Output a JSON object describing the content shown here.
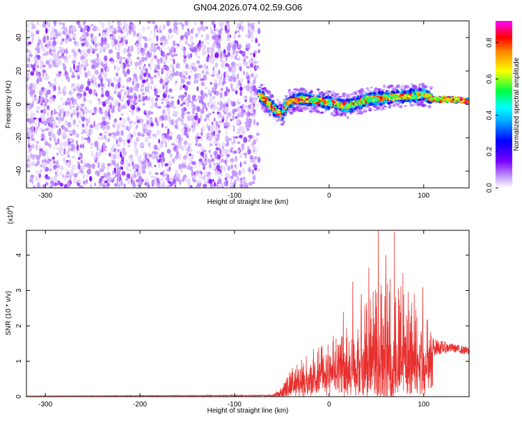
{
  "title": "GN04.2026.074.02.59.G06",
  "chart_data": [
    {
      "type": "heatmap",
      "xlabel": "Height of straight line (km)",
      "ylabel": "Frequency (Hz)",
      "xlim": [
        -320,
        148
      ],
      "ylim": [
        -50,
        50
      ],
      "x_ticks": [
        -300,
        -200,
        -100,
        0,
        100
      ],
      "y_ticks": [
        -40,
        -20,
        0,
        20,
        40
      ],
      "colorbar": {
        "label": "Normalized spectral amplitude",
        "range": [
          0.0,
          0.92
        ],
        "ticks": [
          0.0,
          0.2,
          0.4,
          0.6,
          0.8
        ],
        "colormap": "rainbow",
        "stops": [
          "#ffffff",
          "#7a00ff",
          "#0000ff",
          "#00e5ff",
          "#00ff40",
          "#ffff00",
          "#ff0000",
          "#ff00ff"
        ]
      },
      "noise_region": {
        "x_range": [
          -320,
          -74
        ],
        "f_range": [
          -50,
          50
        ],
        "max_amplitude": 0.15
      },
      "signal_track": [
        {
          "x": -74,
          "f": 6
        },
        {
          "x": -66,
          "f": 2
        },
        {
          "x": -58,
          "f": -3
        },
        {
          "x": -50,
          "f": -6
        },
        {
          "x": -44,
          "f": 1
        },
        {
          "x": -30,
          "f": 3
        },
        {
          "x": -10,
          "f": 2
        },
        {
          "x": 0,
          "f": 1
        },
        {
          "x": 20,
          "f": -1
        },
        {
          "x": 40,
          "f": 3
        },
        {
          "x": 60,
          "f": 4
        },
        {
          "x": 80,
          "f": 5
        },
        {
          "x": 100,
          "f": 6
        },
        {
          "x": 110,
          "f": 3
        },
        {
          "x": 130,
          "f": 3
        },
        {
          "x": 148,
          "f": 2
        }
      ]
    },
    {
      "type": "line",
      "xlabel": "Height of straight line (km)",
      "ylabel": "SNR (10 * v/v)",
      "y_scale_note": "(x10",
      "y_scale_exp": "4",
      "y_scale_close": ")",
      "xlim": [
        -320,
        148
      ],
      "ylim": [
        0,
        4.7
      ],
      "x_ticks": [
        -300,
        -200,
        -100,
        0,
        100
      ],
      "y_ticks": [
        0,
        1,
        2,
        3,
        4
      ],
      "line_color": "#e8302e",
      "baseline": 0.02,
      "envelope": [
        {
          "x": -320,
          "mean": 0.02,
          "amp": 0.0
        },
        {
          "x": -60,
          "mean": 0.03,
          "amp": 0.02
        },
        {
          "x": -50,
          "mean": 0.12,
          "amp": 0.15
        },
        {
          "x": -40,
          "mean": 0.45,
          "amp": 0.4
        },
        {
          "x": -20,
          "mean": 0.7,
          "amp": 0.6
        },
        {
          "x": 0,
          "mean": 0.9,
          "amp": 0.7
        },
        {
          "x": 20,
          "mean": 1.2,
          "amp": 1.0
        },
        {
          "x": 40,
          "mean": 1.4,
          "amp": 1.5
        },
        {
          "x": 60,
          "mean": 1.5,
          "amp": 1.9
        },
        {
          "x": 80,
          "mean": 1.45,
          "amp": 1.7
        },
        {
          "x": 100,
          "mean": 1.35,
          "amp": 1.3
        },
        {
          "x": 110,
          "mean": 1.4,
          "amp": 0.25
        },
        {
          "x": 130,
          "mean": 1.38,
          "amp": 0.12
        },
        {
          "x": 148,
          "mean": 1.28,
          "amp": 0.12
        }
      ],
      "peaks": [
        {
          "x": 52,
          "y": 4.7
        },
        {
          "x": 69,
          "y": 4.65
        },
        {
          "x": 42,
          "y": 3.65
        },
        {
          "x": 78,
          "y": 3.5
        },
        {
          "x": 25,
          "y": 3.25
        },
        {
          "x": 99,
          "y": 3.1
        },
        {
          "x": 60,
          "y": 4.0
        },
        {
          "x": 34,
          "y": 2.9
        },
        {
          "x": 90,
          "y": 2.9
        },
        {
          "x": 15,
          "y": 2.4
        }
      ]
    }
  ]
}
